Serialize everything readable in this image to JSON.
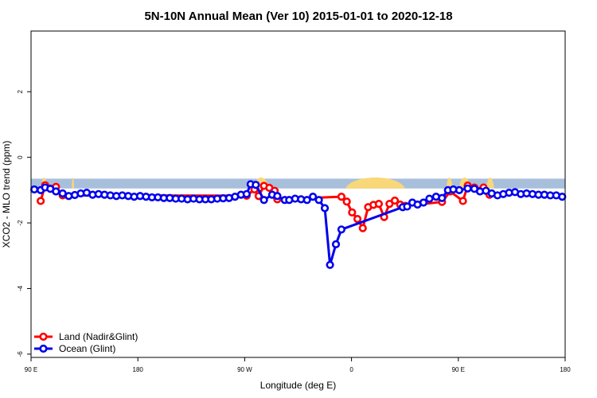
{
  "chart_data": {
    "type": "line",
    "title": "5N-10N Annual Mean (Ver 10)   2015-01-01 to 2020-12-18",
    "xlabel": "Longitude (deg E)",
    "ylabel": "XCO2 - MLO trend (ppm)",
    "xlim": [
      90,
      450
    ],
    "ylim": [
      -6.1,
      3.85
    ],
    "x_ticks": [
      {
        "value": 90,
        "label": "90 E"
      },
      {
        "value": 162,
        "label": "180"
      },
      {
        "value": 234,
        "label": "90 W"
      },
      {
        "value": 306,
        "label": "0"
      },
      {
        "value": 378,
        "label": "90 E"
      },
      {
        "value": 450,
        "label": "180"
      }
    ],
    "y_ticks": [
      {
        "value": 2,
        "label": "2"
      },
      {
        "value": 0,
        "label": "0"
      },
      {
        "value": -2,
        "label": "-2"
      },
      {
        "value": -4,
        "label": "-4"
      },
      {
        "value": -6,
        "label": "-6"
      }
    ],
    "grid": false,
    "legend_position": "bottom-left",
    "background_band": {
      "y_range": [
        -0.65,
        -0.95
      ],
      "ocean_color": "#a8bfdc",
      "land_color": "#f8d878"
    },
    "land_segments": [
      [
        97,
        100.5
      ],
      [
        117.5,
        119
      ],
      [
        240,
        250
      ],
      [
        302,
        342
      ],
      [
        370,
        374
      ],
      [
        378.5,
        386
      ],
      [
        397,
        402
      ]
    ],
    "series": [
      {
        "name": "Land (Nadir&Glint)",
        "color": "#ff0000",
        "points": [
          [
            96.5,
            -1.33
          ],
          [
            99.5,
            -0.85
          ],
          [
            106.8,
            -0.9
          ],
          [
            111.3,
            -1.16
          ],
          [
            235.3,
            -1.17
          ],
          [
            240.6,
            -0.98
          ],
          [
            243.4,
            -1.18
          ],
          [
            247.0,
            -0.87
          ],
          [
            250.6,
            -0.93
          ],
          [
            254.2,
            -1.02
          ],
          [
            256.0,
            -1.28
          ],
          [
            299.2,
            -1.2
          ],
          [
            302.8,
            -1.35
          ],
          [
            306.4,
            -1.68
          ],
          [
            310.0,
            -1.88
          ],
          [
            313.6,
            -2.16
          ],
          [
            317.2,
            -1.52
          ],
          [
            320.8,
            -1.45
          ],
          [
            324.4,
            -1.42
          ],
          [
            328.0,
            -1.82
          ],
          [
            331.6,
            -1.42
          ],
          [
            335.2,
            -1.32
          ],
          [
            338.8,
            -1.44
          ],
          [
            342.4,
            -1.48
          ],
          [
            367.0,
            -1.36
          ],
          [
            372.5,
            -1.04
          ],
          [
            381.1,
            -1.33
          ],
          [
            384.3,
            -0.86
          ],
          [
            388.8,
            -0.92
          ],
          [
            392.6,
            -1.02
          ],
          [
            395.0,
            -0.92
          ],
          [
            399.0,
            -1.14
          ]
        ]
      },
      {
        "name": "Ocean (Glint)",
        "color": "#0000ee",
        "points": [
          [
            92.2,
            -0.98
          ],
          [
            96.5,
            -1.0
          ],
          [
            99.5,
            -0.92
          ],
          [
            103.0,
            -0.96
          ],
          [
            106.8,
            -1.04
          ],
          [
            111.3,
            -1.1
          ],
          [
            115.4,
            -1.18
          ],
          [
            119.5,
            -1.15
          ],
          [
            123.5,
            -1.1
          ],
          [
            127.5,
            -1.08
          ],
          [
            131.5,
            -1.14
          ],
          [
            135.5,
            -1.12
          ],
          [
            139.5,
            -1.14
          ],
          [
            143.5,
            -1.16
          ],
          [
            147.5,
            -1.18
          ],
          [
            151.5,
            -1.16
          ],
          [
            155.5,
            -1.18
          ],
          [
            159.5,
            -1.2
          ],
          [
            163.5,
            -1.18
          ],
          [
            167.5,
            -1.2
          ],
          [
            171.5,
            -1.22
          ],
          [
            175.5,
            -1.22
          ],
          [
            179.5,
            -1.24
          ],
          [
            183.5,
            -1.24
          ],
          [
            187.5,
            -1.26
          ],
          [
            191.5,
            -1.26
          ],
          [
            195.5,
            -1.28
          ],
          [
            199.5,
            -1.26
          ],
          [
            203.5,
            -1.28
          ],
          [
            207.5,
            -1.28
          ],
          [
            211.5,
            -1.28
          ],
          [
            215.5,
            -1.26
          ],
          [
            219.5,
            -1.25
          ],
          [
            223.5,
            -1.24
          ],
          [
            227.5,
            -1.2
          ],
          [
            231.5,
            -1.14
          ],
          [
            235.3,
            -1.12
          ],
          [
            238.0,
            -0.82
          ],
          [
            241.5,
            -0.84
          ],
          [
            247.0,
            -1.3
          ],
          [
            252.5,
            -1.14
          ],
          [
            256.0,
            -1.18
          ],
          [
            261.0,
            -1.3
          ],
          [
            264.0,
            -1.3
          ],
          [
            268.0,
            -1.26
          ],
          [
            272.0,
            -1.28
          ],
          [
            276.0,
            -1.3
          ],
          [
            280.0,
            -1.2
          ],
          [
            284.0,
            -1.3
          ],
          [
            288.0,
            -1.55
          ],
          [
            291.5,
            -3.28
          ],
          [
            295.5,
            -2.65
          ],
          [
            299.2,
            -2.2
          ],
          [
            340.5,
            -1.52
          ],
          [
            343.5,
            -1.5
          ],
          [
            347.0,
            -1.38
          ],
          [
            350.5,
            -1.44
          ],
          [
            354.5,
            -1.38
          ],
          [
            358.5,
            -1.26
          ],
          [
            363.0,
            -1.2
          ],
          [
            367.0,
            -1.24
          ],
          [
            371.0,
            -1.0
          ],
          [
            374.6,
            -0.98
          ],
          [
            378.6,
            -1.0
          ],
          [
            384.3,
            -0.95
          ],
          [
            388.8,
            -0.96
          ],
          [
            392.6,
            -1.04
          ],
          [
            396.6,
            -1.02
          ],
          [
            400.5,
            -1.1
          ],
          [
            404.4,
            -1.16
          ],
          [
            408.3,
            -1.12
          ],
          [
            412.2,
            -1.08
          ],
          [
            416.2,
            -1.06
          ],
          [
            420.1,
            -1.12
          ],
          [
            424.0,
            -1.1
          ],
          [
            428.0,
            -1.12
          ],
          [
            432.0,
            -1.14
          ],
          [
            436.0,
            -1.14
          ],
          [
            440.0,
            -1.16
          ],
          [
            444.0,
            -1.16
          ],
          [
            448.0,
            -1.2
          ]
        ]
      }
    ]
  }
}
